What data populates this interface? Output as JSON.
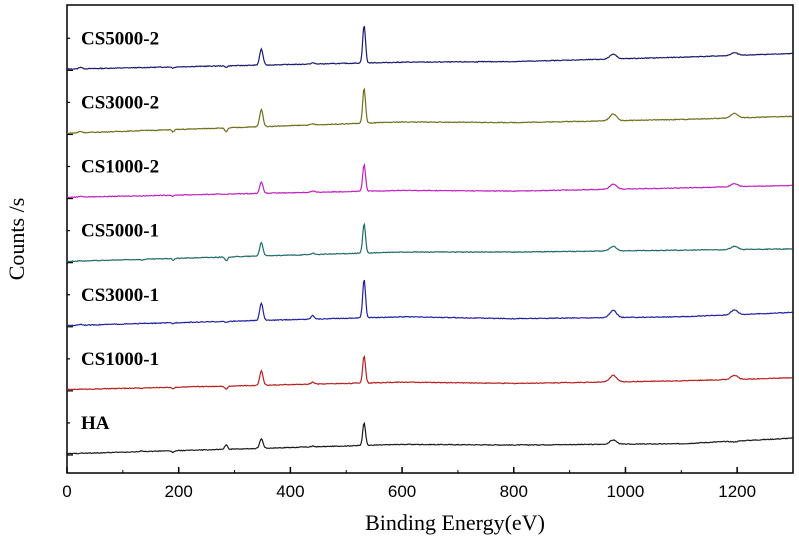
{
  "chart_data": {
    "type": "line",
    "xlabel": "Binding Energy(eV)",
    "ylabel": "Counts /s",
    "xlim": [
      0,
      1300
    ],
    "xticks": [
      0,
      200,
      400,
      600,
      800,
      1000,
      1200
    ],
    "stacked_offset": true,
    "grid": false,
    "peaks_eV": [
      24,
      134,
      190,
      285,
      348,
      440,
      532,
      978,
      1195
    ],
    "series": [
      {
        "name": "CS5000-2",
        "color": "#1a1a6e",
        "x": [
          0,
          24,
          134,
          190,
          285,
          348,
          440,
          532,
          600,
          800,
          978,
          1100,
          1195,
          1300
        ],
        "y": [
          1.0,
          2.5,
          2.0,
          1.8,
          2.5,
          17.0,
          6.0,
          36.0,
          6.5,
          7.0,
          13.0,
          10.5,
          14.0,
          13.5
        ]
      },
      {
        "name": "CS3000-2",
        "color": "#6f6f1c",
        "x": [
          0,
          24,
          134,
          190,
          285,
          348,
          440,
          532,
          600,
          800,
          978,
          1100,
          1195,
          1300
        ],
        "y": [
          1.0,
          2.5,
          3.5,
          2.0,
          2.0,
          20.0,
          8.5,
          37.0,
          10.0,
          9.5,
          16.5,
          12.0,
          17.0,
          14.5
        ]
      },
      {
        "name": "CS1000-2",
        "color": "#c020c0",
        "x": [
          0,
          24,
          134,
          190,
          285,
          348,
          440,
          532,
          600,
          800,
          978,
          1100,
          1195,
          1300
        ],
        "y": [
          1.0,
          2.0,
          2.0,
          1.8,
          3.5,
          13.0,
          6.0,
          27.0,
          6.5,
          6.0,
          11.5,
          8.5,
          12.0,
          10.5
        ]
      },
      {
        "name": "CS5000-1",
        "color": "#206a6a",
        "x": [
          0,
          24,
          134,
          190,
          285,
          348,
          440,
          532,
          600,
          800,
          978,
          1100,
          1195,
          1300
        ],
        "y": [
          1.0,
          1.5,
          2.0,
          2.0,
          1.5,
          16.0,
          7.5,
          31.0,
          8.5,
          8.5,
          13.0,
          10.0,
          13.0,
          11.0
        ]
      },
      {
        "name": "CS3000-1",
        "color": "#2020a0",
        "x": [
          0,
          24,
          134,
          190,
          285,
          348,
          440,
          532,
          600,
          800,
          978,
          1100,
          1195,
          1300
        ],
        "y": [
          1.0,
          2.0,
          3.0,
          2.5,
          3.5,
          19.0,
          9.0,
          38.0,
          8.0,
          6.5,
          13.0,
          8.0,
          13.5,
          11.5
        ]
      },
      {
        "name": "CS1000-1",
        "color": "#b82020",
        "x": [
          0,
          24,
          134,
          190,
          285,
          348,
          440,
          532,
          600,
          800,
          978,
          1100,
          1195,
          1300
        ],
        "y": [
          1.0,
          1.5,
          2.0,
          1.8,
          1.5,
          16.0,
          7.0,
          28.0,
          7.0,
          6.0,
          12.5,
          8.0,
          12.5,
          10.5
        ]
      },
      {
        "name": "HA",
        "color": "#1a1a1a",
        "x": [
          0,
          24,
          134,
          190,
          285,
          348,
          440,
          532,
          600,
          800,
          978,
          1100,
          1195,
          1300
        ],
        "y": [
          1.0,
          1.5,
          3.5,
          2.0,
          8.0,
          13.0,
          7.0,
          26.0,
          8.5,
          8.0,
          12.0,
          9.0,
          10.5,
          13.5
        ]
      }
    ]
  }
}
